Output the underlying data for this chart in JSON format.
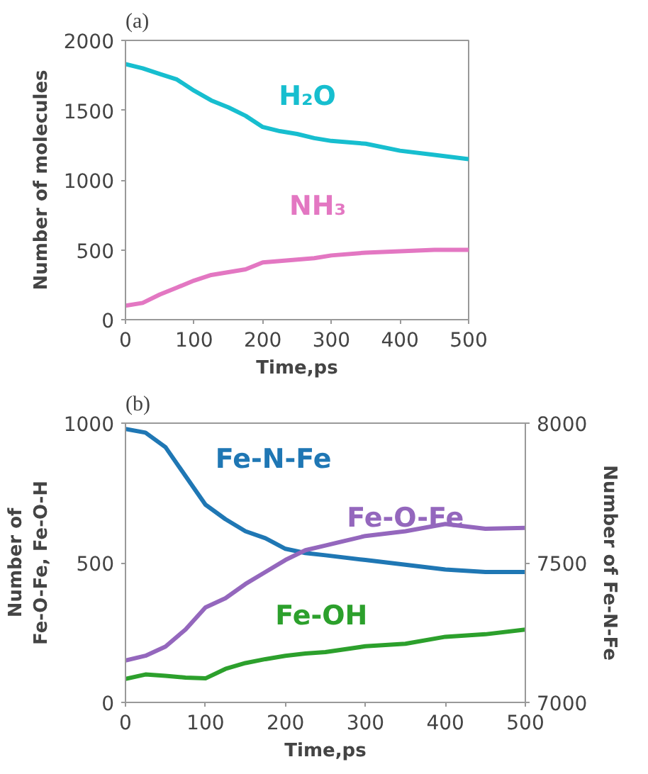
{
  "chart_data": [
    {
      "type": "line",
      "title": "(a)",
      "xlabel": "Time,ps",
      "ylabel": "Number of molecules",
      "x": [
        0,
        25,
        50,
        75,
        100,
        125,
        150,
        175,
        200,
        225,
        250,
        275,
        300,
        350,
        400,
        450,
        500
      ],
      "xlim": [
        0,
        500
      ],
      "xticks": [
        0,
        100,
        200,
        300,
        400,
        500
      ],
      "ylim": [
        0,
        2000
      ],
      "yticks": [
        0,
        500,
        1000,
        1500,
        2000
      ],
      "grid": false,
      "series": [
        {
          "name": "H₂O",
          "color": "#17becf",
          "values": [
            1830,
            1800,
            1760,
            1720,
            1640,
            1570,
            1520,
            1460,
            1380,
            1350,
            1330,
            1300,
            1280,
            1260,
            1210,
            1180,
            1150
          ]
        },
        {
          "name": "NH₃",
          "color": "#e377c2",
          "values": [
            100,
            120,
            180,
            230,
            280,
            320,
            340,
            360,
            410,
            420,
            430,
            440,
            460,
            480,
            490,
            500,
            500
          ]
        }
      ]
    },
    {
      "type": "line",
      "title": "(b)",
      "xlabel": "Time,ps",
      "ylabel": "Number of\nFe-O-Fe, Fe-O-H",
      "y2label": "Number of Fe-N-Fe",
      "x": [
        0,
        25,
        50,
        75,
        100,
        125,
        150,
        175,
        200,
        225,
        250,
        300,
        350,
        400,
        450,
        500
      ],
      "xlim": [
        0,
        500
      ],
      "xticks": [
        0,
        100,
        200,
        300,
        400,
        500
      ],
      "ylim": [
        0,
        1000
      ],
      "yticks": [
        0,
        500,
        1000
      ],
      "y2lim": [
        7000,
        8000
      ],
      "y2ticks": [
        7000,
        7500,
        8000
      ],
      "grid": false,
      "series": [
        {
          "name": "Fe-N-Fe",
          "color": "#1f77b4",
          "axis": "y2",
          "values": [
            7979,
            7966,
            7914,
            7811,
            7708,
            7656,
            7613,
            7588,
            7550,
            7535,
            7527,
            7510,
            7493,
            7476,
            7467,
            7467
          ]
        },
        {
          "name": "Fe-O-Fe",
          "color": "#9467bd",
          "values": [
            150,
            167,
            200,
            261,
            340,
            373,
            424,
            467,
            510,
            545,
            562,
            596,
            613,
            639,
            622,
            625
          ]
        },
        {
          "name": "Fe-OH",
          "color": "#2ca02c",
          "values": [
            84,
            100,
            95,
            89,
            86,
            120,
            141,
            155,
            167,
            175,
            180,
            201,
            210,
            235,
            244,
            261
          ]
        }
      ]
    }
  ]
}
